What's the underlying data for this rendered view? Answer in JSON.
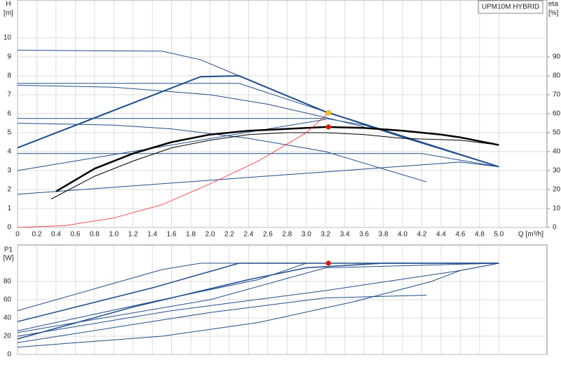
{
  "chart_data": [
    {
      "type": "line",
      "legend_title": "UPM10M HYBRID",
      "y_label": "H",
      "y_unit": "[m]",
      "y2_label": "eta",
      "y2_unit": "[%]",
      "x_label": "Q [m³/h]",
      "grid": true,
      "xlim": [
        0,
        5.5
      ],
      "ylim": [
        0,
        12
      ],
      "y2lim": [
        0,
        120
      ],
      "xticks": [
        0,
        0.2,
        0.4,
        0.6,
        0.8,
        {
          "value": 1,
          "label": "1.0"
        },
        1.2,
        1.4,
        1.6,
        1.8,
        {
          "value": 2,
          "label": "2.0"
        },
        2.2,
        2.4,
        2.6,
        2.8,
        {
          "value": 3,
          "label": "3.0"
        },
        3.2,
        3.4,
        3.6,
        3.8,
        {
          "value": 4,
          "label": "4.0"
        },
        4.2,
        4.4,
        4.6,
        4.8,
        {
          "value": 5,
          "label": "5.0"
        }
      ],
      "yticks": [
        0,
        1,
        2,
        3,
        4,
        5,
        6,
        7,
        8,
        9,
        10
      ],
      "y2ticks": [
        0,
        10,
        20,
        30,
        40,
        50,
        60,
        70,
        80,
        90
      ],
      "series": [
        {
          "color": "#1f4e8c",
          "width": 1,
          "x": [
            0,
            1.5,
            1.9,
            2.3,
            3.2,
            4.0,
            5.0
          ],
          "values": [
            9.35,
            9.3,
            8.85,
            8.0,
            6.1,
            4.75,
            3.2
          ]
        },
        {
          "color": "#1f4e8c",
          "width": 2,
          "x": [
            0,
            1.9,
            2.3,
            3.2,
            5.0
          ],
          "values": [
            4.2,
            7.95,
            8.0,
            6.1,
            3.2
          ]
        },
        {
          "color": "#1f4e8c",
          "width": 1,
          "x": [
            0,
            2.3,
            3.2
          ],
          "values": [
            7.6,
            7.6,
            6.1
          ]
        },
        {
          "color": "#1f4e8c",
          "width": 1,
          "x": [
            0,
            1.0,
            2.0,
            2.6,
            3.2,
            3.6
          ],
          "values": [
            7.5,
            7.4,
            7.0,
            6.5,
            5.8,
            5.3
          ]
        },
        {
          "color": "#1f4e8c",
          "width": 1,
          "x": [
            0,
            3.2,
            3.6,
            5.0
          ],
          "values": [
            5.75,
            5.75,
            5.4,
            3.2
          ]
        },
        {
          "color": "#1f4e8c",
          "width": 1,
          "x": [
            0,
            1.0,
            1.6,
            2.4,
            3.2,
            4.25
          ],
          "values": [
            5.5,
            5.4,
            5.2,
            4.7,
            4.0,
            2.4
          ]
        },
        {
          "color": "#1f4e8c",
          "width": 1,
          "x": [
            0,
            4.2,
            5.0
          ],
          "values": [
            3.9,
            3.9,
            3.2
          ]
        },
        {
          "color": "#1f4e8c",
          "width": 1,
          "x": [
            0,
            3.2
          ],
          "values": [
            3.0,
            5.7
          ]
        },
        {
          "color": "#1f4e8c",
          "width": 1,
          "x": [
            0,
            4.6,
            5.0
          ],
          "values": [
            1.75,
            3.45,
            3.2
          ]
        },
        {
          "color": "#000000",
          "width": 2.5,
          "axis": "y2",
          "x": [
            0.4,
            0.8,
            1.2,
            1.6,
            2.0,
            2.4,
            2.8,
            3.2,
            3.6,
            4.0,
            4.4,
            4.6,
            5.0
          ],
          "values": [
            19,
            31,
            39,
            45,
            49,
            51,
            52,
            53,
            52.5,
            51,
            49,
            47.5,
            43.5
          ]
        },
        {
          "color": "#000000",
          "width": 1,
          "axis": "y2",
          "x": [
            0.35,
            0.8,
            1.2,
            1.6,
            2.0,
            2.4,
            2.8,
            3.2,
            3.6,
            4.0,
            4.6,
            5.0
          ],
          "values": [
            15,
            27,
            35,
            42,
            46,
            49,
            50,
            50,
            49,
            47,
            46,
            43.5
          ]
        },
        {
          "color": "#ff2a2a",
          "width": 0.8,
          "x": [
            0,
            0.5,
            1.0,
            1.5,
            2.0,
            2.5,
            3.0,
            3.23
          ],
          "values": [
            0,
            0.1,
            0.5,
            1.2,
            2.3,
            3.5,
            5.0,
            6.05
          ]
        }
      ],
      "points": [
        {
          "x": 3.23,
          "y": 6.05,
          "color": "#f5c518"
        },
        {
          "x": 3.23,
          "y": 5.3,
          "color": "#e01010"
        }
      ]
    },
    {
      "type": "line",
      "y_label": "P1",
      "y_unit": "[W]",
      "grid": true,
      "xlim": [
        0,
        5.5
      ],
      "ylim": [
        0,
        120
      ],
      "xticks": [
        0,
        0.2,
        0.4,
        0.6,
        0.8,
        1,
        1.2,
        1.4,
        1.6,
        1.8,
        2,
        2.2,
        2.4,
        2.6,
        2.8,
        3,
        3.2,
        3.4,
        3.6,
        3.8,
        4,
        4.2,
        4.4,
        4.6,
        4.8,
        5
      ],
      "yticks": [
        0,
        20,
        40,
        60,
        80
      ],
      "series": [
        {
          "color": "#1f4e8c",
          "width": 1,
          "x": [
            0,
            0.8,
            1.5,
            1.9,
            5.0
          ],
          "values": [
            48,
            72,
            93,
            100,
            100
          ]
        },
        {
          "color": "#1f4e8c",
          "width": 1.5,
          "x": [
            0,
            1.4,
            1.9,
            2.3,
            5.0
          ],
          "values": [
            36,
            73,
            88,
            100,
            100
          ]
        },
        {
          "color": "#1f4e8c",
          "width": 1,
          "x": [
            0,
            1.5,
            2.5,
            3.0,
            5.0
          ],
          "values": [
            26,
            60,
            82,
            100,
            100
          ]
        },
        {
          "color": "#1f4e8c",
          "width": 1.5,
          "x": [
            0,
            1.2,
            2.4,
            3.0,
            3.8,
            5.0
          ],
          "values": [
            17,
            52,
            82,
            95,
            100,
            100
          ]
        },
        {
          "color": "#1f4e8c",
          "width": 1,
          "x": [
            0,
            2.0,
            3.2,
            5.0
          ],
          "values": [
            24,
            60,
            95,
            100
          ]
        },
        {
          "color": "#1f4e8c",
          "width": 1,
          "x": [
            0,
            2.0,
            3.2,
            4.25
          ],
          "values": [
            13,
            46,
            62,
            65
          ]
        },
        {
          "color": "#1f4e8c",
          "width": 1,
          "x": [
            0,
            1.6,
            3.2,
            4.6,
            5.0
          ],
          "values": [
            20,
            48,
            70,
            92,
            100
          ]
        },
        {
          "color": "#1f4e8c",
          "width": 1,
          "x": [
            0,
            1.5,
            2.5,
            3.5,
            4.3,
            4.6,
            5.0
          ],
          "values": [
            8,
            20,
            35,
            58,
            80,
            92,
            100
          ]
        }
      ],
      "points": [
        {
          "x": 3.23,
          "y": 100,
          "color": "#e01010"
        }
      ]
    }
  ]
}
